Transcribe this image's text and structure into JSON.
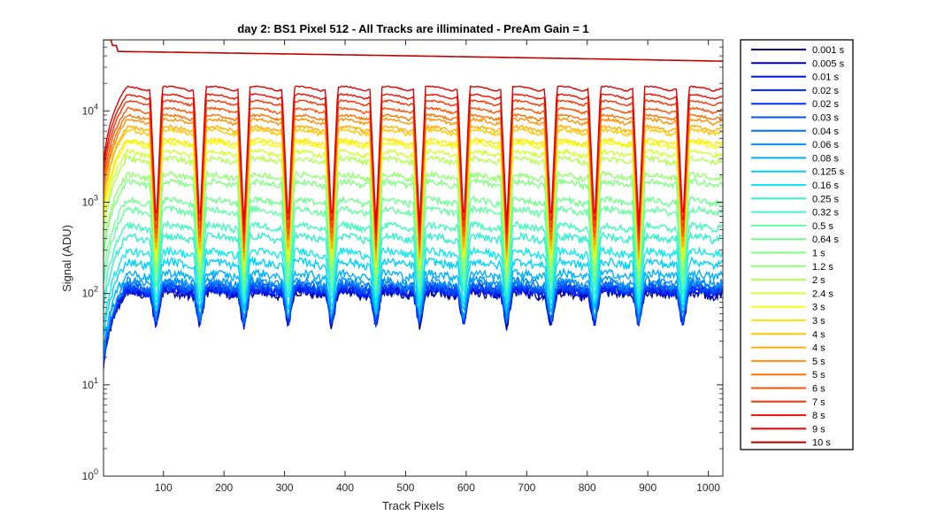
{
  "chart_data": {
    "type": "line",
    "title": "day 2: BS1  Pixel 512 - All Tracks are illiminated - PreAm Gain = 1",
    "xlabel": "Track Pixels",
    "ylabel": "Signal (ADU)",
    "xlim": [
      1,
      1024
    ],
    "ylim": [
      1,
      60000
    ],
    "yscale": "log",
    "grid": false,
    "legend_position": "outside-right",
    "x_ticks": [
      100,
      200,
      300,
      400,
      500,
      600,
      700,
      800,
      900,
      1000
    ],
    "y_ticks": [
      {
        "base": "10",
        "exp": "0",
        "value": 1
      },
      {
        "base": "10",
        "exp": "1",
        "value": 10
      },
      {
        "base": "10",
        "exp": "2",
        "value": 100
      },
      {
        "base": "10",
        "exp": "3",
        "value": 1000
      },
      {
        "base": "10",
        "exp": "4",
        "value": 10000
      }
    ],
    "dips_x": [
      88,
      160,
      233,
      306,
      378,
      451,
      523,
      596,
      667,
      740,
      812,
      885,
      958
    ],
    "series": [
      {
        "name": "0.001 s",
        "color": "#00008f",
        "plateau": 95,
        "dip": 40
      },
      {
        "name": "0.005 s",
        "color": "#0000b0",
        "plateau": 98,
        "dip": 40
      },
      {
        "name": "0.01 s",
        "color": "#0010e0",
        "plateau": 100,
        "dip": 41
      },
      {
        "name": "0.02 s",
        "color": "#0020ff",
        "plateau": 102,
        "dip": 42
      },
      {
        "name": "0.02 s",
        "color": "#0030ff",
        "plateau": 104,
        "dip": 42
      },
      {
        "name": "0.03 s",
        "color": "#0050ff",
        "plateau": 108,
        "dip": 44
      },
      {
        "name": "0.04 s",
        "color": "#0070ff",
        "plateau": 115,
        "dip": 46
      },
      {
        "name": "0.06 s",
        "color": "#0090ff",
        "plateau": 125,
        "dip": 50
      },
      {
        "name": "0.08 s",
        "color": "#00b0ff",
        "plateau": 150,
        "dip": 55
      },
      {
        "name": "0.125 s",
        "color": "#00d0ff",
        "plateau": 200,
        "dip": 60
      },
      {
        "name": "0.16 s",
        "color": "#10e8ef",
        "plateau": 260,
        "dip": 70
      },
      {
        "name": "0.25 s",
        "color": "#30f0cf",
        "plateau": 380,
        "dip": 80
      },
      {
        "name": "0.32 s",
        "color": "#40f8bf",
        "plateau": 500,
        "dip": 90
      },
      {
        "name": "0.5 s",
        "color": "#60ff9f",
        "plateau": 750,
        "dip": 100
      },
      {
        "name": "0.64 s",
        "color": "#70ff8f",
        "plateau": 950,
        "dip": 110
      },
      {
        "name": "1 s",
        "color": "#80ff80",
        "plateau": 1500,
        "dip": 120
      },
      {
        "name": "1.2 s",
        "color": "#90ff70",
        "plateau": 1800,
        "dip": 130
      },
      {
        "name": "2 s",
        "color": "#b0ff50",
        "plateau": 2700,
        "dip": 150
      },
      {
        "name": "2.4 s",
        "color": "#d0ff30",
        "plateau": 3200,
        "dip": 160
      },
      {
        "name": "3 s",
        "color": "#efff10",
        "plateau": 4000,
        "dip": 180
      },
      {
        "name": "3 s",
        "color": "#ffe800",
        "plateau": 4300,
        "dip": 190
      },
      {
        "name": "4 s",
        "color": "#ffc800",
        "plateau": 5500,
        "dip": 210
      },
      {
        "name": "4 s",
        "color": "#ffb000",
        "plateau": 6000,
        "dip": 220
      },
      {
        "name": "5 s",
        "color": "#ff9000",
        "plateau": 7200,
        "dip": 250
      },
      {
        "name": "5 s",
        "color": "#ff7000",
        "plateau": 8000,
        "dip": 270
      },
      {
        "name": "6 s",
        "color": "#ff5000",
        "plateau": 9500,
        "dip": 300
      },
      {
        "name": "7 s",
        "color": "#ff3000",
        "plateau": 11500,
        "dip": 350
      },
      {
        "name": "8 s",
        "color": "#f01000",
        "plateau": 13500,
        "dip": 420
      },
      {
        "name": "9 s",
        "color": "#e00000",
        "plateau": 16500,
        "dip": 500
      },
      {
        "name": "10 s",
        "color": "#c00000",
        "plateau": 45000,
        "dip": 30000
      }
    ]
  }
}
